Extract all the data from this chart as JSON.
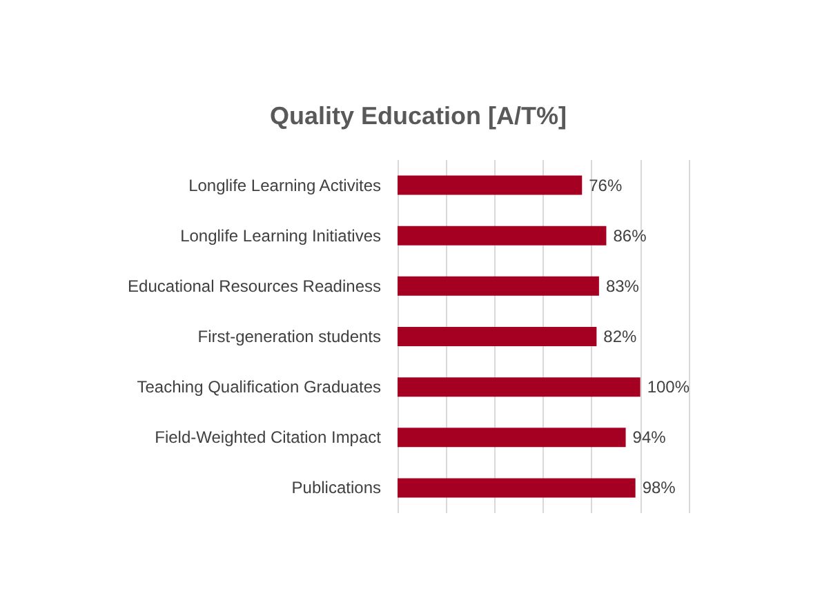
{
  "chart_data": {
    "type": "bar",
    "orientation": "horizontal",
    "title": "Quality Education [A/T%]",
    "categories": [
      "Longlife Learning Activites",
      "Longlife Learning Initiatives",
      "Educational Resources Readiness",
      "First-generation students",
      "Teaching Qualification Graduates",
      "Field-Weighted Citation Impact",
      "Publications"
    ],
    "values": [
      76,
      86,
      83,
      82,
      100,
      94,
      98
    ],
    "value_labels": [
      "76%",
      "86%",
      "83%",
      "82%",
      "100%",
      "94%",
      "98%"
    ],
    "color": "#a50021",
    "xlim": [
      0,
      120
    ],
    "xticks": [
      {
        "value": 0,
        "label": null
      },
      {
        "value": 20,
        "label": null
      },
      {
        "value": 40,
        "label": null
      },
      {
        "value": 60,
        "label": null
      },
      {
        "value": 80,
        "label": null
      },
      {
        "value": 100,
        "label": null
      },
      {
        "value": 120,
        "label": null
      }
    ],
    "grid": "x",
    "tick_labels": "y"
  }
}
